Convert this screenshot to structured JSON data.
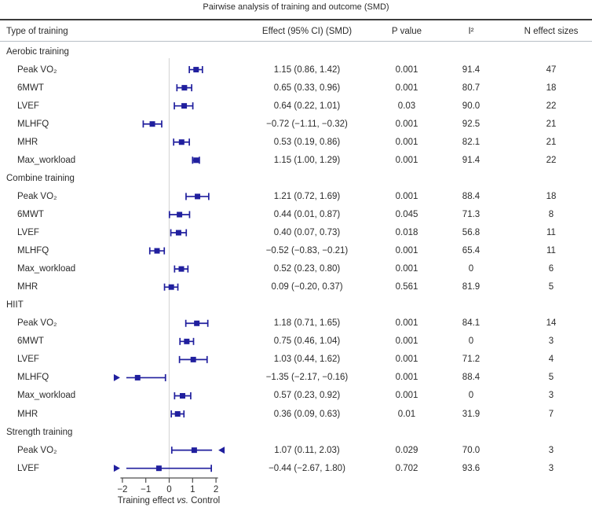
{
  "title": "Pairwise analysis of training and outcome (SMD)",
  "columns": {
    "type": "Type of training",
    "effect": "Effect (95% CI) (SMD)",
    "p": "P value",
    "i2": "I²",
    "n": "N effect sizes"
  },
  "colors": {
    "marker": "#201f9e",
    "zero_line": "#d9d9d9",
    "rule_dark": "#3c3c3c",
    "rule_light": "#b7bfc6",
    "text": "#2b2b2b",
    "axis": "#4d4d4d"
  },
  "chart_data": {
    "type": "forest",
    "xlim": [
      -2,
      2
    ],
    "xticks": [
      -2,
      -1,
      0,
      1,
      2
    ],
    "xtick_labels": [
      "−2",
      "−1",
      "0",
      "1",
      "2"
    ],
    "zero_line": 0,
    "xlabel_parts": [
      "Training effect ",
      "vs.",
      " Control"
    ],
    "groups": [
      {
        "name": "Aerobic training",
        "rows": [
          {
            "label": "Peak VO₂",
            "est": 1.15,
            "lo": 0.86,
            "hi": 1.42,
            "effect_text": "1.15 (0.86, 1.42)",
            "p": "0.001",
            "i2": "91.4",
            "n": "47"
          },
          {
            "label": "6MWT",
            "est": 0.65,
            "lo": 0.33,
            "hi": 0.96,
            "effect_text": "0.65 (0.33, 0.96)",
            "p": "0.001",
            "i2": "80.7",
            "n": "18"
          },
          {
            "label": "LVEF",
            "est": 0.64,
            "lo": 0.22,
            "hi": 1.01,
            "effect_text": "0.64 (0.22, 1.01)",
            "p": "0.03",
            "i2": "90.0",
            "n": "22"
          },
          {
            "label": "MLHFQ",
            "est": -0.72,
            "lo": -1.11,
            "hi": -0.32,
            "effect_text": "−0.72 (−1.11, −0.32)",
            "p": "0.001",
            "i2": "92.5",
            "n": "21"
          },
          {
            "label": "MHR",
            "est": 0.53,
            "lo": 0.19,
            "hi": 0.86,
            "effect_text": "0.53 (0.19, 0.86)",
            "p": "0.001",
            "i2": "82.1",
            "n": "21"
          },
          {
            "label": "Max_workload",
            "est": 1.15,
            "lo": 1.0,
            "hi": 1.29,
            "effect_text": "1.15 (1.00, 1.29)",
            "p": "0.001",
            "i2": "91.4",
            "n": "22"
          }
        ]
      },
      {
        "name": "Combine training",
        "rows": [
          {
            "label": "Peak VO₂",
            "est": 1.21,
            "lo": 0.72,
            "hi": 1.69,
            "effect_text": "1.21 (0.72, 1.69)",
            "p": "0.001",
            "i2": "88.4",
            "n": "18"
          },
          {
            "label": "6MWT",
            "est": 0.44,
            "lo": 0.01,
            "hi": 0.87,
            "effect_text": "0.44 (0.01, 0.87)",
            "p": "0.045",
            "i2": "71.3",
            "n": "8"
          },
          {
            "label": "LVEF",
            "est": 0.4,
            "lo": 0.07,
            "hi": 0.73,
            "effect_text": "0.40 (0.07, 0.73)",
            "p": "0.018",
            "i2": "56.8",
            "n": "11"
          },
          {
            "label": "MLHFQ",
            "est": -0.52,
            "lo": -0.83,
            "hi": -0.21,
            "effect_text": "−0.52 (−0.83, −0.21)",
            "p": "0.001",
            "i2": "65.4",
            "n": "11"
          },
          {
            "label": "Max_workload",
            "est": 0.52,
            "lo": 0.23,
            "hi": 0.8,
            "effect_text": "0.52 (0.23, 0.80)",
            "p": "0.001",
            "i2": "0",
            "n": "6"
          },
          {
            "label": "MHR",
            "est": 0.09,
            "lo": -0.2,
            "hi": 0.37,
            "effect_text": "0.09 (−0.20, 0.37)",
            "p": "0.561",
            "i2": "81.9",
            "n": "5"
          }
        ]
      },
      {
        "name": "HIIT",
        "rows": [
          {
            "label": "Peak VO₂",
            "est": 1.18,
            "lo": 0.71,
            "hi": 1.65,
            "effect_text": "1.18 (0.71, 1.65)",
            "p": "0.001",
            "i2": "84.1",
            "n": "14"
          },
          {
            "label": "6MWT",
            "est": 0.75,
            "lo": 0.46,
            "hi": 1.04,
            "effect_text": "0.75 (0.46, 1.04)",
            "p": "0.001",
            "i2": "0",
            "n": "3"
          },
          {
            "label": "LVEF",
            "est": 1.03,
            "lo": 0.44,
            "hi": 1.62,
            "effect_text": "1.03 (0.44, 1.62)",
            "p": "0.001",
            "i2": "71.2",
            "n": "4"
          },
          {
            "label": "MLHFQ",
            "est": -1.35,
            "lo": -2.17,
            "hi": -0.16,
            "effect_text": "−1.35 (−2.17, −0.16)",
            "p": "0.001",
            "i2": "88.4",
            "n": "5"
          },
          {
            "label": "Max_workload",
            "est": 0.57,
            "lo": 0.23,
            "hi": 0.92,
            "effect_text": "0.57 (0.23, 0.92)",
            "p": "0.001",
            "i2": "0",
            "n": "3"
          },
          {
            "label": "MHR",
            "est": 0.36,
            "lo": 0.09,
            "hi": 0.63,
            "effect_text": "0.36 (0.09, 0.63)",
            "p": "0.01",
            "i2": "31.9",
            "n": "7"
          }
        ]
      },
      {
        "name": "Strength training",
        "rows": [
          {
            "label": "Peak VO₂",
            "est": 1.07,
            "lo": 0.11,
            "hi": 2.03,
            "effect_text": "1.07 (0.11, 2.03)",
            "p": "0.029",
            "i2": "70.0",
            "n": "3"
          },
          {
            "label": "LVEF",
            "est": -0.44,
            "lo": -2.67,
            "hi": 1.8,
            "effect_text": "−0.44 (−2.67, 1.80)",
            "p": "0.702",
            "i2": "93.6",
            "n": "3"
          }
        ]
      }
    ]
  }
}
